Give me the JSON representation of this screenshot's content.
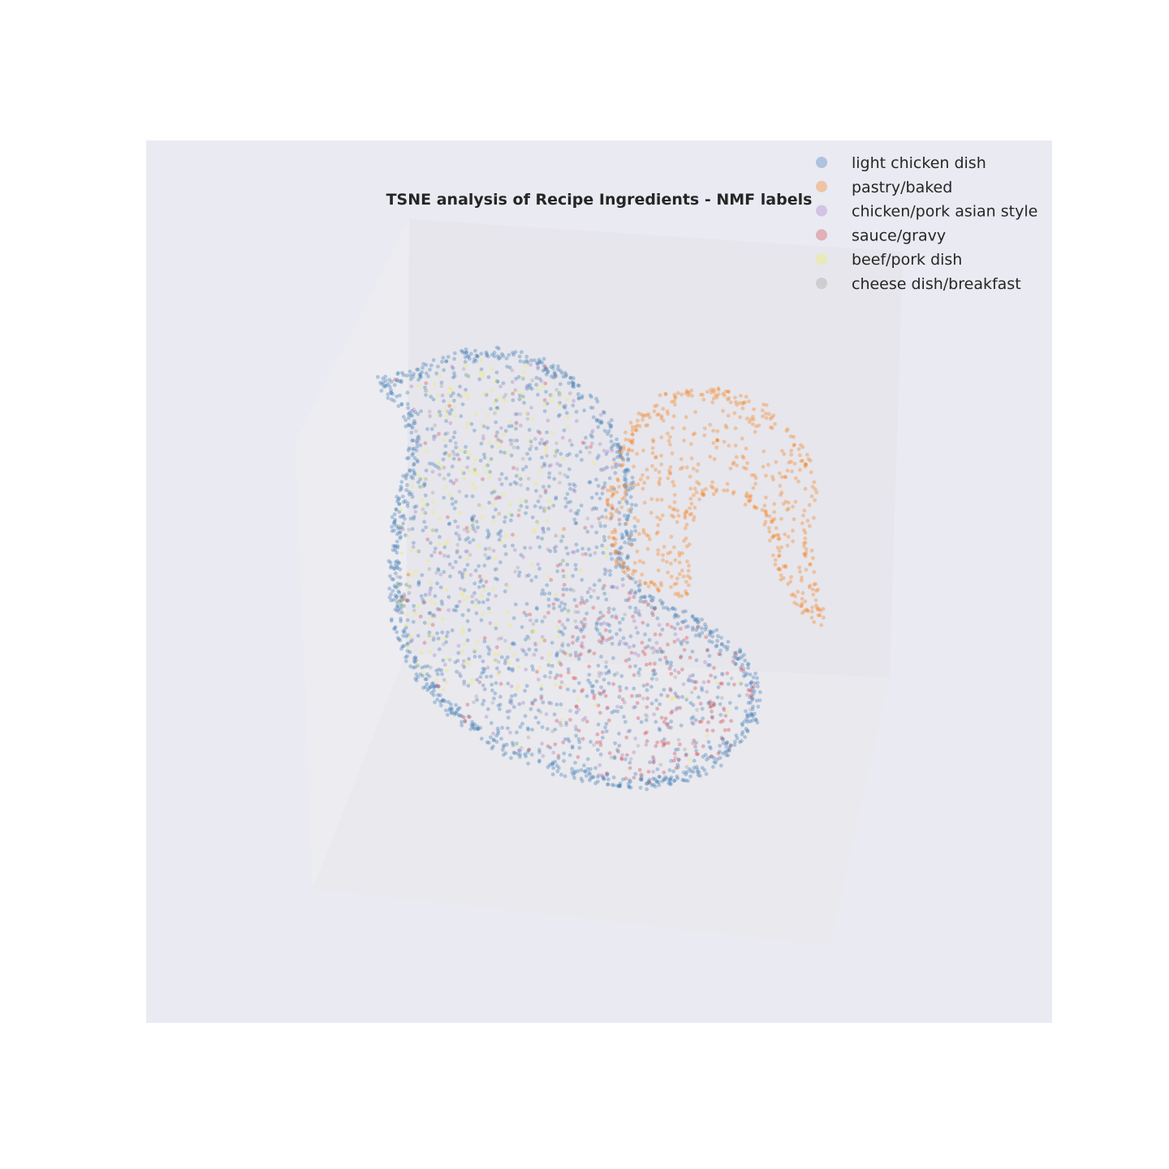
{
  "chart_data": {
    "type": "scatter",
    "projection": "3d",
    "title": "TSNE analysis of Recipe Ingredients - NMF labels",
    "xlabel": "",
    "ylabel": "",
    "zlabel": "",
    "grid": false,
    "axes_visible": false,
    "legend_position": "top-right",
    "point_alpha": 0.35,
    "series": [
      {
        "name": "light chicken dish",
        "color": "#3f7bb5",
        "region": "left-lobe",
        "approx_count": 3200
      },
      {
        "name": "pastry/baked",
        "color": "#f57f1e",
        "region": "right-hook",
        "approx_count": 1100
      },
      {
        "name": "chicken/pork asian style",
        "color": "#a37cc3",
        "region": "left-lobe-scattered",
        "approx_count": 400
      },
      {
        "name": "sauce/gravy",
        "color": "#d2464e",
        "region": "lower-right-of-left-lobe",
        "approx_count": 500
      },
      {
        "name": "beef/pork dish",
        "color": "#eeee5c",
        "region": "left-lobe-upper-left",
        "approx_count": 450
      },
      {
        "name": "cheese dish/breakfast",
        "color": "#a0a0a0",
        "region": "left-lobe-scattered",
        "approx_count": 250
      }
    ]
  }
}
